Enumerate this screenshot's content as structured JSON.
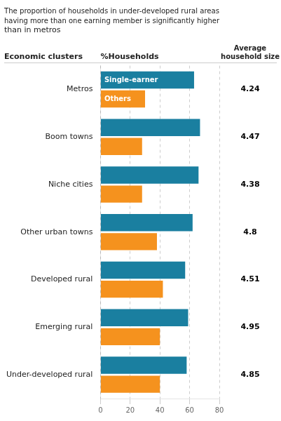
{
  "chart_data": {
    "type": "bar",
    "orientation": "horizontal",
    "title": "The proportion of households in under-developed rural areas\nhaving more than one earning member is significantly higher\nthan in metros",
    "category_header": "Economic clusters",
    "value_header": "%Households",
    "household_size_header": "Average\nhousehold size",
    "categories": [
      "Metros",
      "Boom towns",
      "Niche cities",
      "Other urban towns",
      "Developed rural",
      "Emerging rural",
      "Under-developed rural"
    ],
    "series": [
      {
        "name": "Single-earner",
        "color": "#1a7fa0",
        "values": [
          63,
          67,
          66,
          62,
          57,
          59,
          58
        ]
      },
      {
        "name": "Others",
        "color": "#f5921e",
        "values": [
          30,
          28,
          28,
          38,
          42,
          40,
          40
        ]
      }
    ],
    "household_size": [
      4.24,
      4.47,
      4.38,
      4.8,
      4.51,
      4.95,
      4.85
    ],
    "xlim": [
      0,
      80
    ],
    "xticks": [
      0,
      20,
      40,
      60,
      80
    ],
    "grid": true
  }
}
